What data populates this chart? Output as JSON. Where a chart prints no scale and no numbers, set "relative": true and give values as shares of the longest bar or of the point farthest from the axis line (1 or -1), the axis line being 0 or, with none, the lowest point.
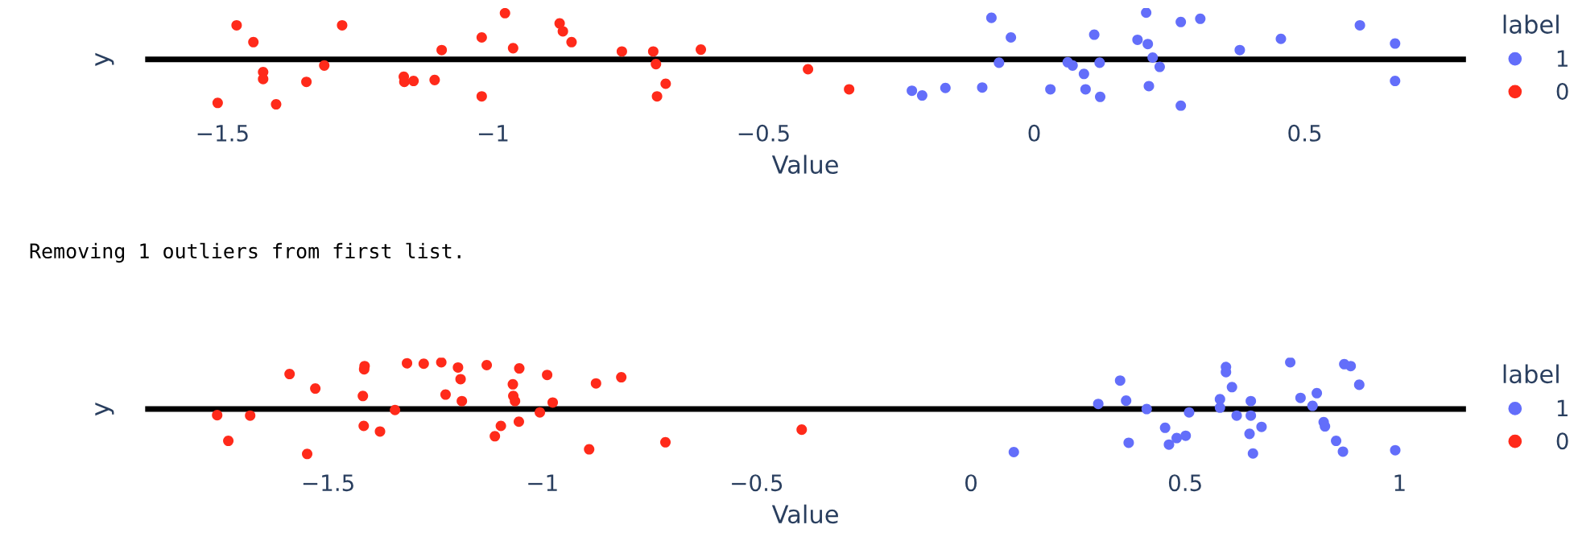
{
  "chart_data": [
    {
      "type": "scatter",
      "relative": true,
      "xlabel": "Value",
      "ylabel": "y",
      "legend_title": "label",
      "legend": "right",
      "grid": false,
      "marker": "circle",
      "xlim": [
        -1.643,
        0.798
      ],
      "xticks": [
        {
          "value": -1.5,
          "label": "−1.5"
        },
        {
          "value": -1,
          "label": "−1"
        },
        {
          "value": -0.5,
          "label": "−0.5"
        },
        0,
        0.5
      ],
      "series": [
        {
          "name": "1",
          "color": "#636efa",
          "x": [
            -0.226,
            -0.207,
            -0.164,
            -0.096,
            -0.079,
            -0.065,
            -0.043,
            0.03,
            0.062,
            0.071,
            0.092,
            0.095,
            0.111,
            0.121,
            0.122,
            0.191,
            0.207,
            0.21,
            0.212,
            0.219,
            0.232,
            0.271,
            0.271,
            0.307,
            0.38,
            0.456,
            0.602,
            0.667,
            0.667
          ],
          "values": [
            -0.67,
            -0.77,
            -0.61,
            -0.6,
            0.89,
            -0.07,
            0.47,
            -0.64,
            -0.06,
            -0.13,
            -0.31,
            -0.64,
            0.53,
            -0.07,
            -0.8,
            0.42,
            1.0,
            0.33,
            -0.57,
            0.04,
            -0.16,
            0.8,
            -0.99,
            0.87,
            0.2,
            0.44,
            0.73,
            0.34,
            -0.46
          ]
        },
        {
          "name": "0",
          "color": "#ff2a1a",
          "x": [
            -1.509,
            -1.474,
            -1.443,
            -1.425,
            -1.425,
            -1.401,
            -1.345,
            -1.312,
            -1.279,
            -1.165,
            -1.164,
            -1.147,
            -1.108,
            -1.095,
            -1.021,
            -1.021,
            -0.978,
            -0.963,
            -0.877,
            -0.871,
            -0.855,
            -0.762,
            -0.704,
            -0.699,
            -0.681,
            -0.697,
            -0.616,
            -0.418,
            -0.342
          ],
          "values": [
            -0.93,
            0.73,
            0.37,
            -0.27,
            -0.42,
            -0.96,
            -0.48,
            -0.13,
            0.73,
            -0.37,
            -0.48,
            -0.46,
            -0.44,
            0.2,
            0.47,
            -0.79,
            0.99,
            0.24,
            0.77,
            0.6,
            0.37,
            0.17,
            0.17,
            -0.1,
            -0.52,
            -0.79,
            0.21,
            -0.21,
            -0.64
          ]
        }
      ]
    },
    {
      "type": "scatter",
      "relative": true,
      "xlabel": "Value",
      "ylabel": "y",
      "legend_title": "label",
      "legend": "right",
      "grid": false,
      "marker": "circle",
      "annotations": [
        "Removing 1 outliers from first list."
      ],
      "xlim": [
        -1.927,
        1.155
      ],
      "xticks": [
        {
          "value": -1.5,
          "label": "−1.5"
        },
        {
          "value": -1,
          "label": "−1"
        },
        {
          "value": -0.5,
          "label": "−0.5"
        },
        0,
        0.5,
        1
      ],
      "series": [
        {
          "name": "1",
          "color": "#636efa",
          "x": [
            0.1,
            0.297,
            0.348,
            0.362,
            0.368,
            0.41,
            0.453,
            0.462,
            0.48,
            0.501,
            0.509,
            0.581,
            0.581,
            0.595,
            0.595,
            0.609,
            0.62,
            0.65,
            0.653,
            0.653,
            0.658,
            0.678,
            0.745,
            0.769,
            0.797,
            0.807,
            0.823,
            0.826,
            0.852,
            0.868,
            0.871,
            0.886,
            0.906,
            0.99
          ],
          "values": [
            -0.92,
            0.11,
            0.61,
            0.18,
            -0.72,
            0.0,
            -0.4,
            -0.76,
            -0.62,
            -0.57,
            -0.07,
            0.21,
            0.03,
            0.9,
            0.79,
            0.47,
            -0.14,
            -0.53,
            0.17,
            -0.14,
            -0.95,
            -0.38,
            1.0,
            0.24,
            0.07,
            0.34,
            -0.28,
            -0.37,
            -0.68,
            -0.91,
            0.96,
            0.92,
            0.52,
            -0.88
          ]
        },
        {
          "name": "0",
          "color": "#ff2a1a",
          "x": [
            -1.759,
            -1.733,
            -1.682,
            -1.59,
            -1.549,
            -1.53,
            -1.419,
            -1.417,
            -1.416,
            -1.415,
            -1.379,
            -1.344,
            -1.316,
            -1.277,
            -1.236,
            -1.226,
            -1.197,
            -1.191,
            -1.188,
            -1.13,
            -1.111,
            -1.097,
            -1.069,
            -1.068,
            -1.064,
            -1.055,
            -1.054,
            -1.006,
            -0.989,
            -0.976,
            -0.891,
            -0.875,
            -0.816,
            -0.713,
            -0.395
          ],
          "values": [
            -0.13,
            -0.68,
            -0.14,
            0.75,
            -0.96,
            0.44,
            0.28,
            -0.36,
            0.85,
            0.92,
            -0.48,
            -0.02,
            0.98,
            0.97,
            1.0,
            0.31,
            0.89,
            0.64,
            0.17,
            0.94,
            -0.58,
            -0.36,
            0.53,
            0.28,
            0.17,
            -0.27,
            0.87,
            -0.07,
            0.73,
            0.14,
            -0.86,
            0.55,
            0.68,
            -0.71,
            -0.44
          ]
        }
      ]
    }
  ]
}
